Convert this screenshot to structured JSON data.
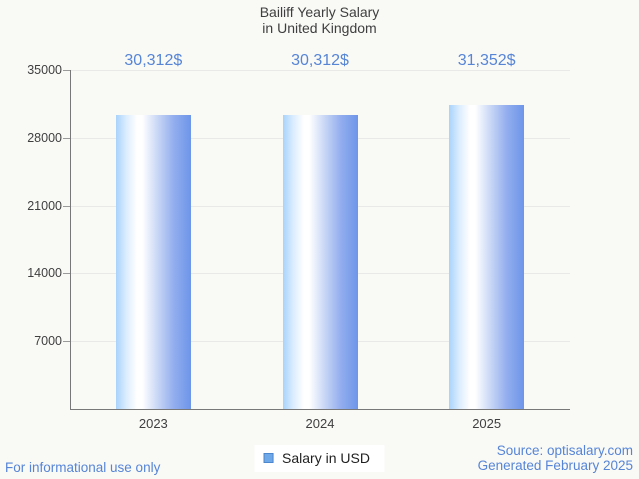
{
  "title": {
    "line1": "Bailiff Yearly Salary",
    "line2": "in United Kingdom"
  },
  "chart_data": {
    "type": "bar",
    "title": "Bailiff Yearly Salary in United Kingdom",
    "categories": [
      "2023",
      "2024",
      "2025"
    ],
    "series": [
      {
        "name": "Salary in USD",
        "values": [
          30312,
          30312,
          31352
        ]
      }
    ],
    "value_labels": [
      "30,312$",
      "30,312$",
      "31,352$"
    ],
    "xlabel": "",
    "ylabel": "",
    "ylim": [
      0,
      35000
    ],
    "yticks": [
      7000,
      14000,
      21000,
      28000,
      35000
    ],
    "grid": true,
    "legend_position": "bottom"
  },
  "legend": {
    "label": "Salary in USD"
  },
  "footer": {
    "disclaimer": "For informational use only",
    "source": "Source: optisalary.com",
    "generated": "Generated February 2025"
  },
  "colors": {
    "accent_blue": "#5685d6",
    "bar_gradient_left": "#a9d3fb",
    "bar_gradient_mid": "#ffffff",
    "bar_gradient_right": "#6d95e9",
    "legend_marker_fill": "#6fa8e8",
    "legend_marker_border": "#4c86cc",
    "axis_line": "#787878",
    "gridline": "#e9e9e7",
    "text_dark": "#3f3f3f",
    "background": "#f9f9f6"
  }
}
